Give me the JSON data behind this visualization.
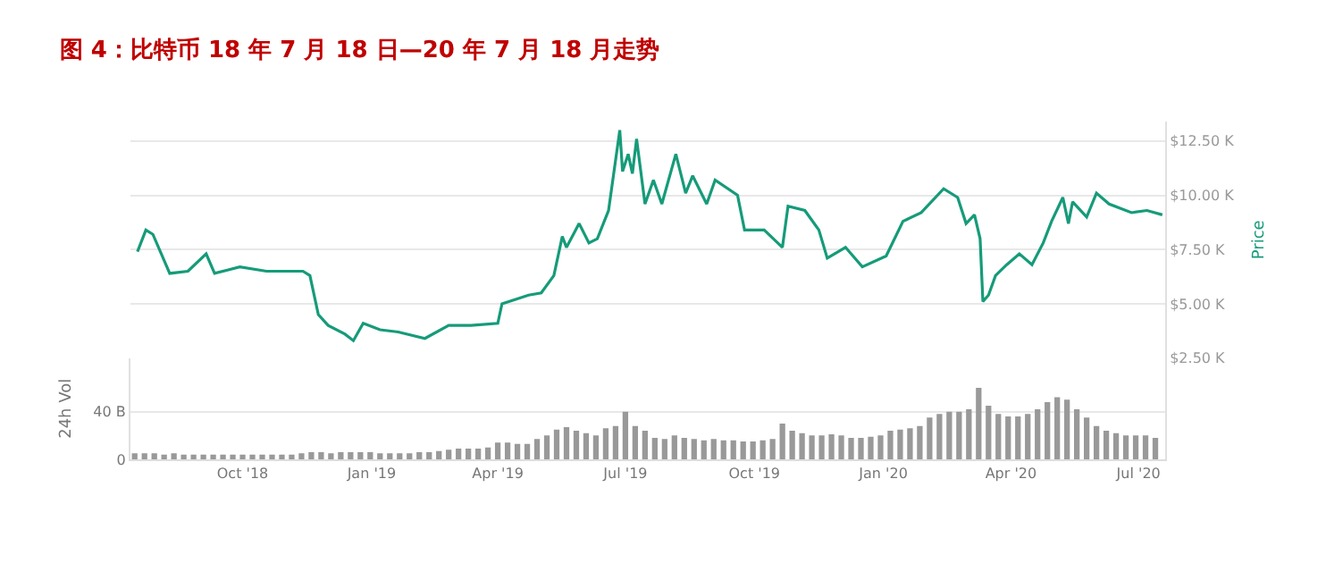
{
  "chart_data": [
    {
      "type": "line",
      "title": "图 4：比特币 18 年 7 月 18 日—20 年 7 月 18 月走势",
      "ylabel": "Price",
      "xlim": [
        "2018-07-13",
        "2020-07-20"
      ],
      "ylim": [
        2.5,
        13.4
      ],
      "yticks": [
        {
          "value": 2.5,
          "label": "$2.50 K"
        },
        {
          "value": 5,
          "label": "$5.00 K"
        },
        {
          "value": 7.5,
          "label": "$7.50 K"
        },
        {
          "value": 10,
          "label": "$10.00 K"
        },
        {
          "value": 12.5,
          "label": "$12.50 K"
        }
      ],
      "tick_labels": "y",
      "grid": "y",
      "marker": "none",
      "line_style": "solid",
      "series": [
        {
          "color": "#169b7a",
          "x": [
            "2018-07-18",
            "2018-07-24",
            "2018-07-29",
            "2018-08-10",
            "2018-08-23",
            "2018-09-05",
            "2018-09-11",
            "2018-09-29",
            "2018-10-18",
            "2018-11-13",
            "2018-11-18",
            "2018-11-24",
            "2018-12-01",
            "2018-12-13",
            "2018-12-19",
            "2018-12-26",
            "2019-01-07",
            "2019-01-20",
            "2019-02-08",
            "2019-02-25",
            "2019-03-13",
            "2019-04-01",
            "2019-04-04",
            "2019-04-23",
            "2019-05-02",
            "2019-05-11",
            "2019-05-17",
            "2019-05-20",
            "2019-05-29",
            "2019-06-05",
            "2019-06-11",
            "2019-06-19",
            "2019-06-27",
            "2019-06-29",
            "2019-07-03",
            "2019-07-06",
            "2019-07-09",
            "2019-07-15",
            "2019-07-21",
            "2019-07-27",
            "2019-08-06",
            "2019-08-13",
            "2019-08-18",
            "2019-08-28",
            "2019-09-03",
            "2019-09-19",
            "2019-09-24",
            "2019-10-08",
            "2019-10-21",
            "2019-10-25",
            "2019-11-06",
            "2019-11-16",
            "2019-11-22",
            "2019-12-05",
            "2019-12-17",
            "2020-01-03",
            "2020-01-15",
            "2020-01-28",
            "2020-02-13",
            "2020-02-23",
            "2020-02-29",
            "2020-03-06",
            "2020-03-10",
            "2020-03-12",
            "2020-03-16",
            "2020-03-21",
            "2020-03-29",
            "2020-04-07",
            "2020-04-16",
            "2020-04-24",
            "2020-04-30",
            "2020-05-08",
            "2020-05-12",
            "2020-05-15",
            "2020-05-25",
            "2020-06-01",
            "2020-06-10",
            "2020-06-26",
            "2020-07-07",
            "2020-07-18"
          ],
          "values": [
            7.4,
            8.4,
            8.2,
            6.4,
            6.5,
            7.3,
            6.4,
            6.7,
            6.5,
            6.5,
            6.3,
            4.5,
            4.0,
            3.6,
            3.3,
            4.1,
            3.8,
            3.7,
            3.4,
            4.0,
            4.0,
            4.1,
            5.0,
            5.4,
            5.5,
            6.3,
            8.1,
            7.6,
            8.7,
            7.8,
            8.0,
            9.3,
            13.0,
            11.1,
            11.9,
            11.0,
            12.6,
            9.6,
            10.7,
            9.6,
            11.9,
            10.1,
            10.9,
            9.6,
            10.7,
            10.0,
            8.4,
            8.4,
            7.6,
            9.5,
            9.3,
            8.4,
            7.1,
            7.6,
            6.7,
            7.2,
            8.8,
            9.2,
            10.3,
            9.9,
            8.7,
            9.1,
            8.0,
            5.1,
            5.4,
            6.3,
            6.8,
            7.3,
            6.8,
            7.8,
            8.8,
            9.9,
            8.7,
            9.7,
            9.0,
            10.1,
            9.6,
            9.2,
            9.3,
            9.1
          ]
        }
      ]
    },
    {
      "type": "bar",
      "ylabel": "24h Vol",
      "xlim": [
        "2018-07-13",
        "2020-07-20"
      ],
      "xticks": [
        {
          "value": "2018-10-01",
          "label": "Oct '18"
        },
        {
          "value": "2019-01-01",
          "label": "Jan '19"
        },
        {
          "value": "2019-04-01",
          "label": "Apr '19"
        },
        {
          "value": "2019-07-01",
          "label": "Jul '19"
        },
        {
          "value": "2019-10-01",
          "label": "Oct '19"
        },
        {
          "value": "2020-01-01",
          "label": "Jan '20"
        },
        {
          "value": "2020-04-01",
          "label": "Apr '20"
        },
        {
          "value": "2020-07-01",
          "label": "Jul '20"
        }
      ],
      "ylim": [
        0,
        85
      ],
      "yticks": [
        0,
        {
          "value": 40,
          "label": "40 B"
        }
      ],
      "grid": "y",
      "series": [
        {
          "color": "#999999",
          "x": [
            "2018-07-16",
            "2018-07-23",
            "2018-07-30",
            "2018-08-06",
            "2018-08-13",
            "2018-08-20",
            "2018-08-27",
            "2018-09-03",
            "2018-09-10",
            "2018-09-17",
            "2018-09-24",
            "2018-10-01",
            "2018-10-08",
            "2018-10-15",
            "2018-10-22",
            "2018-10-29",
            "2018-11-05",
            "2018-11-12",
            "2018-11-19",
            "2018-11-26",
            "2018-12-03",
            "2018-12-10",
            "2018-12-17",
            "2018-12-24",
            "2018-12-31",
            "2019-01-07",
            "2019-01-14",
            "2019-01-21",
            "2019-01-28",
            "2019-02-04",
            "2019-02-11",
            "2019-02-18",
            "2019-02-25",
            "2019-03-04",
            "2019-03-11",
            "2019-03-18",
            "2019-03-25",
            "2019-04-01",
            "2019-04-08",
            "2019-04-15",
            "2019-04-22",
            "2019-04-29",
            "2019-05-06",
            "2019-05-13",
            "2019-05-20",
            "2019-05-27",
            "2019-06-03",
            "2019-06-10",
            "2019-06-17",
            "2019-06-24",
            "2019-07-01",
            "2019-07-08",
            "2019-07-15",
            "2019-07-22",
            "2019-07-29",
            "2019-08-05",
            "2019-08-12",
            "2019-08-19",
            "2019-08-26",
            "2019-09-02",
            "2019-09-09",
            "2019-09-16",
            "2019-09-23",
            "2019-09-30",
            "2019-10-07",
            "2019-10-14",
            "2019-10-21",
            "2019-10-28",
            "2019-11-04",
            "2019-11-11",
            "2019-11-18",
            "2019-11-25",
            "2019-12-02",
            "2019-12-09",
            "2019-12-16",
            "2019-12-23",
            "2019-12-30",
            "2020-01-06",
            "2020-01-13",
            "2020-01-20",
            "2020-01-27",
            "2020-02-03",
            "2020-02-10",
            "2020-02-17",
            "2020-02-24",
            "2020-03-02",
            "2020-03-09",
            "2020-03-16",
            "2020-03-23",
            "2020-03-30",
            "2020-04-06",
            "2020-04-13",
            "2020-04-20",
            "2020-04-27",
            "2020-05-04",
            "2020-05-11",
            "2020-05-18",
            "2020-05-25",
            "2020-06-01",
            "2020-06-08",
            "2020-06-15",
            "2020-06-22",
            "2020-06-29",
            "2020-07-06",
            "2020-07-13"
          ],
          "values": [
            5,
            5,
            5,
            4,
            5,
            4,
            4,
            4,
            4,
            4,
            4,
            4,
            4,
            4,
            4,
            4,
            4,
            5,
            6,
            6,
            5,
            6,
            6,
            6,
            6,
            5,
            5,
            5,
            5,
            6,
            6,
            7,
            8,
            9,
            9,
            9,
            10,
            14,
            14,
            13,
            13,
            17,
            20,
            25,
            27,
            24,
            22,
            20,
            26,
            28,
            40,
            28,
            24,
            18,
            17,
            20,
            18,
            17,
            16,
            17,
            16,
            16,
            15,
            15,
            16,
            17,
            30,
            24,
            22,
            20,
            20,
            21,
            20,
            18,
            18,
            19,
            20,
            24,
            25,
            26,
            28,
            35,
            38,
            40,
            40,
            42,
            60,
            45,
            38,
            36,
            36,
            38,
            42,
            48,
            52,
            50,
            42,
            35,
            28,
            24,
            22,
            20,
            20,
            20,
            18
          ]
        }
      ]
    }
  ]
}
